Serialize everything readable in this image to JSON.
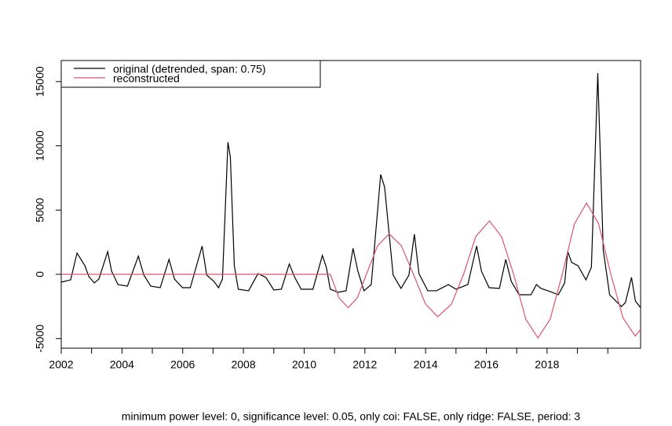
{
  "chart_data": {
    "type": "line",
    "legend_position": "top-left",
    "caption": "minimum power level: 0, significance level: 0.05, only coi: FALSE, only ridge: FALSE, period: 3",
    "xlim": [
      2002,
      2021.08
    ],
    "ylim": [
      -5750,
      16640
    ],
    "xticks": [
      2002,
      2004,
      2006,
      2008,
      2010,
      2012,
      2014,
      2016,
      2018
    ],
    "xminorticks": [
      2003,
      2005,
      2007,
      2009,
      2011,
      2013,
      2015,
      2017,
      2019,
      2020
    ],
    "yticks": [
      -5000,
      0,
      5000,
      10000,
      15000
    ],
    "series": [
      {
        "name": "original (detrended, span: 0.75)",
        "color": "#000000",
        "x": [
          2002.0,
          2002.31,
          2002.52,
          2002.78,
          2002.91,
          2003.09,
          2003.24,
          2003.53,
          2003.66,
          2003.87,
          2004.18,
          2004.54,
          2004.72,
          2004.95,
          2005.26,
          2005.55,
          2005.73,
          2005.99,
          2006.25,
          2006.64,
          2006.79,
          2007.03,
          2007.18,
          2007.31,
          2007.49,
          2007.57,
          2007.7,
          2007.83,
          2008.17,
          2008.48,
          2008.74,
          2009.0,
          2009.25,
          2009.51,
          2009.69,
          2009.9,
          2010.29,
          2010.6,
          2010.73,
          2010.86,
          2011.12,
          2011.38,
          2011.61,
          2011.77,
          2011.97,
          2012.21,
          2012.52,
          2012.65,
          2012.93,
          2013.19,
          2013.45,
          2013.63,
          2013.78,
          2014.07,
          2014.36,
          2014.75,
          2015.0,
          2015.39,
          2015.68,
          2015.84,
          2016.09,
          2016.43,
          2016.64,
          2016.82,
          2017.08,
          2017.47,
          2017.65,
          2017.8,
          2018.11,
          2018.37,
          2018.58,
          2018.68,
          2018.81,
          2019.02,
          2019.28,
          2019.46,
          2019.67,
          2019.85,
          2020.06,
          2020.45,
          2020.58,
          2020.78,
          2020.91,
          2021.08
        ],
        "values": [
          -610,
          -430,
          1650,
          670,
          -180,
          -670,
          -370,
          1770,
          240,
          -800,
          -920,
          1410,
          -60,
          -920,
          -1040,
          1160,
          -370,
          -1040,
          -1040,
          2200,
          -60,
          -550,
          -1040,
          -370,
          10280,
          9110,
          670,
          -1160,
          -1280,
          60,
          -240,
          -1220,
          -1160,
          800,
          -240,
          -1160,
          -1160,
          1470,
          550,
          -1160,
          -1400,
          -1280,
          2020,
          240,
          -1280,
          -800,
          7770,
          6790,
          -60,
          -1100,
          -60,
          3120,
          60,
          -1280,
          -1280,
          -800,
          -1160,
          -800,
          2200,
          240,
          -1040,
          -1100,
          1160,
          -550,
          -1590,
          -1590,
          -800,
          -1100,
          -1350,
          -1590,
          -670,
          1770,
          920,
          670,
          -430,
          550,
          15660,
          1900,
          -1590,
          -2510,
          -2200,
          -240,
          -2080,
          -2600
        ]
      },
      {
        "name": "reconstructed",
        "color": "#df536b",
        "x": [
          2002.0,
          2010.86,
          2011.15,
          2011.45,
          2011.75,
          2012.05,
          2012.42,
          2012.8,
          2013.2,
          2013.6,
          2014.0,
          2014.4,
          2014.85,
          2015.25,
          2015.65,
          2016.1,
          2016.5,
          2016.9,
          2017.3,
          2017.7,
          2018.1,
          2018.5,
          2018.9,
          2019.3,
          2019.7,
          2020.1,
          2020.5,
          2020.9,
          2021.08
        ],
        "values": [
          0,
          0,
          -1840,
          -2600,
          -1840,
          0,
          2230,
          3150,
          2230,
          0,
          -2330,
          -3300,
          -2330,
          0,
          2930,
          4150,
          2930,
          0,
          -3500,
          -4950,
          -3500,
          0,
          3920,
          5550,
          3920,
          0,
          -3390,
          -4800,
          -4300
        ]
      }
    ]
  }
}
